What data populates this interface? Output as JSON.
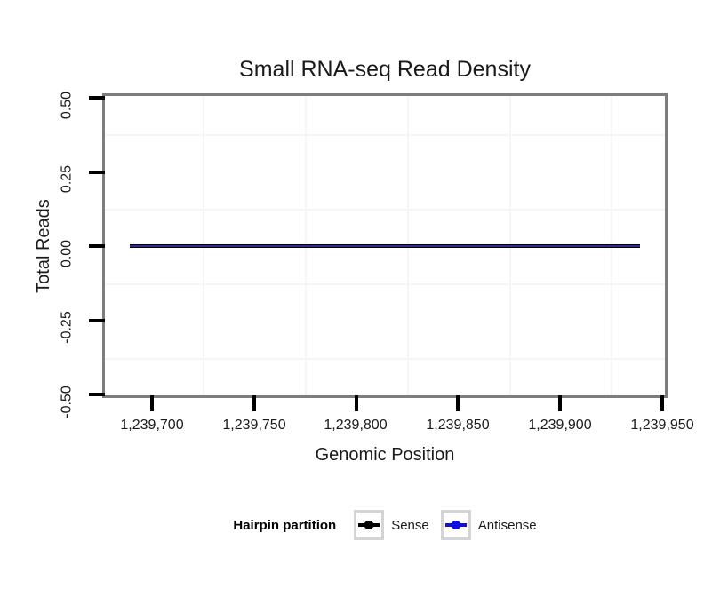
{
  "chart_data": {
    "type": "line",
    "title": "Small RNA-seq Read Density",
    "xlabel": "Genomic Position",
    "ylabel": "Total Reads",
    "xlim": [
      1239677,
      1239951
    ],
    "ylim": [
      -0.5,
      0.5
    ],
    "x_tick_values": [
      1239700,
      1239750,
      1239800,
      1239850,
      1239900,
      1239950
    ],
    "x_tick_labels": [
      "1,239,700",
      "1,239,750",
      "1,239,800",
      "1,239,850",
      "1,239,900",
      "1,239,950"
    ],
    "y_tick_values": [
      0.5,
      0.25,
      0.0,
      -0.25,
      -0.5
    ],
    "y_tick_labels": [
      "0.50",
      "0.25",
      "0.00",
      "-0.25",
      "-0.50"
    ],
    "grid": {
      "major": false,
      "minor": true,
      "minor_color": "#f5f5f5"
    },
    "panel_border_color": "#7d7d7d",
    "tick_color": "#000000",
    "series": [
      {
        "name": "Sense",
        "color": "#000000",
        "x": [
          1239689,
          1239939
        ],
        "y": [
          0,
          0
        ]
      },
      {
        "name": "Antisense",
        "color": "#2e2e8f",
        "x": [
          1239689,
          1239939
        ],
        "y": [
          0,
          0
        ]
      }
    ],
    "legend": {
      "title": "Hairpin partition",
      "position": "bottom",
      "key_border_color": "#d4d4d4",
      "entries": [
        {
          "label": "Sense",
          "color": "#000000"
        },
        {
          "label": "Antisense",
          "color": "#0f0fe0"
        }
      ]
    }
  }
}
